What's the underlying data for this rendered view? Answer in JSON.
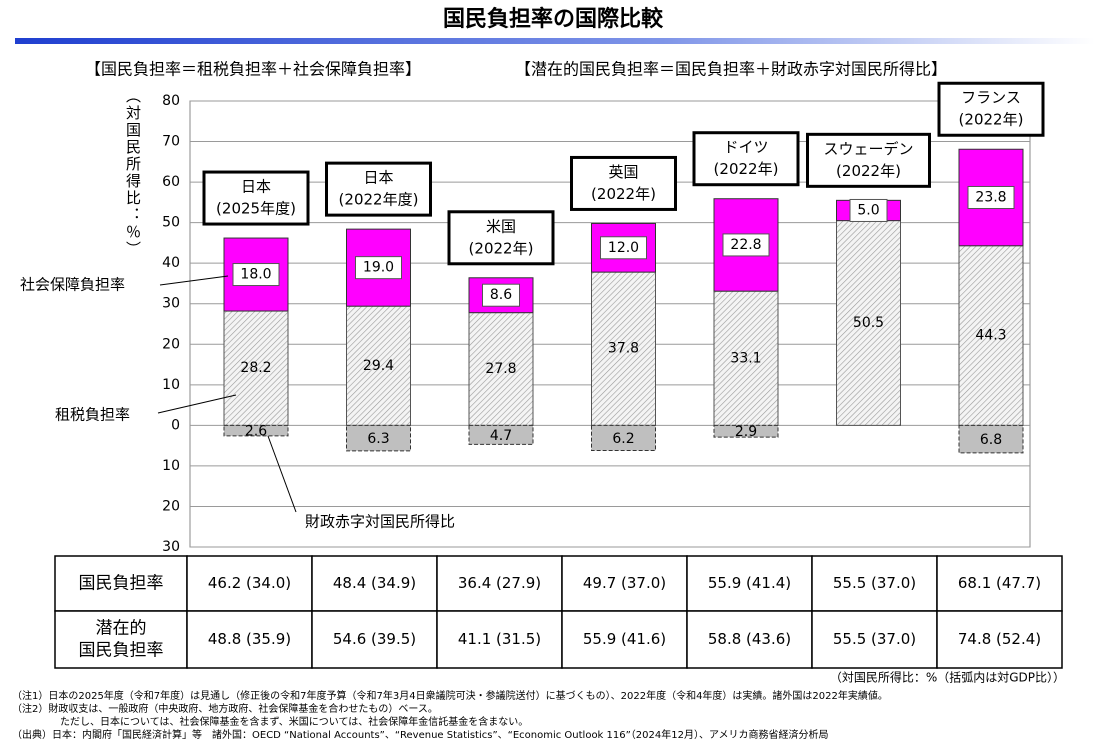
{
  "chart_data": {
    "type": "bar",
    "title": "国民負担率の国際比較",
    "subtitle_left": "【国民負担率＝租税負担率＋社会保障負担率】",
    "subtitle_right": "【潜在的国民負担率＝国民負担率＋財政赤字対国民所得比】",
    "y_label": "（対国民所得比：％）",
    "categories": [
      "日本",
      "日本",
      "米国",
      "英国",
      "ドイツ",
      "スウェーデン",
      "フランス"
    ],
    "category_periods": [
      "(2025年度)",
      "(2022年度)",
      "(2022年)",
      "(2022年)",
      "(2022年)",
      "(2022年)",
      "(2022年)"
    ],
    "series": [
      {
        "name": "租税負担率",
        "color": "#c8c8c8",
        "values": [
          28.2,
          29.4,
          27.8,
          37.8,
          33.1,
          50.5,
          44.3
        ]
      },
      {
        "name": "社会保障負担率",
        "color": "#ff00ff",
        "values": [
          18.0,
          19.0,
          8.6,
          12.0,
          22.8,
          5.0,
          23.8
        ],
        "value_labels": [
          "18.0",
          "19.0",
          "8.6",
          "12.0",
          "22.8",
          "5.0",
          "23.8"
        ]
      },
      {
        "name": "財政赤字対国民所得比",
        "color": "#bfbfbf",
        "values": [
          -2.6,
          -6.3,
          -4.7,
          -6.2,
          -2.9,
          null,
          -6.8
        ],
        "value_labels": [
          "2.6",
          "6.3",
          "4.7",
          "6.2",
          "2.9",
          null,
          "6.8"
        ]
      }
    ],
    "ylim": [
      -30,
      80
    ],
    "yticks": [
      80,
      70,
      60,
      50,
      40,
      30,
      20,
      10,
      0,
      {
        "value": -10,
        "label": "10"
      },
      {
        "value": -20,
        "label": "20"
      },
      {
        "value": -30,
        "label": "30"
      }
    ],
    "grid": true
  },
  "table": {
    "rows": [
      {
        "label": [
          "国民負担率"
        ],
        "cells": [
          "46.2 (34.0)",
          "48.4 (34.9)",
          "36.4 (27.9)",
          "49.7 (37.0)",
          "55.9 (41.4)",
          "55.5 (37.0)",
          "68.1 (47.7)"
        ]
      },
      {
        "label": [
          "潜在的",
          "国民負担率"
        ],
        "cells": [
          "48.8 (35.9)",
          "54.6 (39.5)",
          "41.1 (31.5)",
          "55.9 (41.6)",
          "58.8 (43.6)",
          "55.5 (37.0)",
          "74.8 (52.4)"
        ]
      }
    ],
    "unit_note": "（対国民所得比：%（括弧内は対GDP比））"
  },
  "notes": [
    "（注1）日本の2025年度（令和7年度）は見通し（修正後の令和7年度予算（令和7年3月4日衆議院可決・参議院送付）に基づくもの）、2022年度（令和4年度）は実績。諸外国は2022年実績値。",
    "（注2）財政収支は、一般政府（中央政府、地方政府、社会保障基金を合わせたもの）ベース。",
    "ただし、日本については、社会保障基金を含まず、米国については、社会保障年金信託基金を含まない。",
    "（出典）日本：内閣府「国民経済計算」等　諸外国：OECD “National Accounts”、“Revenue Statistics”、“Economic Outlook 116”（2024年12月）、アメリカ商務省経済分析局"
  ]
}
